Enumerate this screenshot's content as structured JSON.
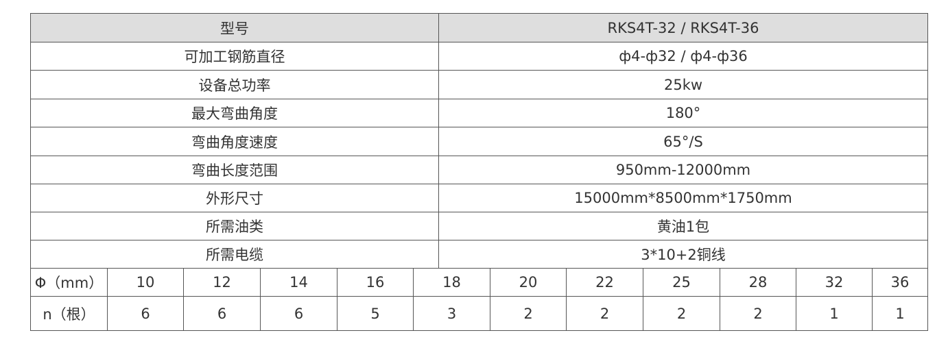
{
  "spec_table": {
    "header": {
      "label": "型号",
      "value": "RKS4T-32 / RKS4T-36"
    },
    "rows": [
      {
        "label": "可加工钢筋直径",
        "value": "ф4-ф32 / ф4-ф36"
      },
      {
        "label": "设备总功率",
        "value": "25kw"
      },
      {
        "label": "最大弯曲角度",
        "value": "180°"
      },
      {
        "label": "弯曲角度速度",
        "value": "65°/S"
      },
      {
        "label": "弯曲长度范围",
        "value": "950mm-12000mm"
      },
      {
        "label": "外形尺寸",
        "value": "15000mm*8500mm*1750mm"
      },
      {
        "label": "所需油类",
        "value": "黄油1包"
      },
      {
        "label": "所需电缆",
        "value": "3*10+2铜线"
      }
    ]
  },
  "capacity_table": {
    "diameter_label": "Φ（mm）",
    "count_label": "n（根）",
    "diameters": [
      "10",
      "12",
      "14",
      "16",
      "18",
      "20",
      "22",
      "25",
      "28",
      "32",
      "36"
    ],
    "counts": [
      "6",
      "6",
      "6",
      "5",
      "3",
      "2",
      "2",
      "2",
      "2",
      "1",
      "1"
    ]
  },
  "colors": {
    "header_bg": "#dedede",
    "border": "#555555",
    "text": "#333333"
  }
}
